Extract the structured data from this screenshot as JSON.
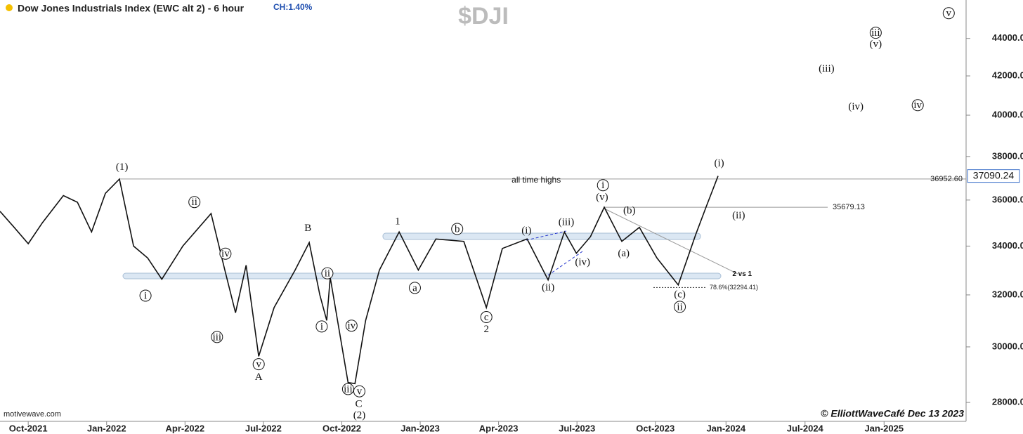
{
  "chart_data": {
    "type": "line",
    "title": "Dow Jones Industrials Index (EWC alt 2) - 6 hour",
    "change": "CH:1.40%",
    "symbol": "$DJI",
    "source": "motivewave.com",
    "credit": "© ElliottWaveCafé Dec 13 2023",
    "log_scale": true,
    "color": "#111111",
    "x": [
      2021.66,
      2021.705,
      2021.75,
      2021.795,
      2021.862,
      2021.907,
      2021.952,
      2021.996,
      2022.041,
      2022.086,
      2022.131,
      2022.176,
      2022.243,
      2022.333,
      2022.377,
      2022.411,
      2022.445,
      2022.485,
      2022.534,
      2022.601,
      2022.646,
      2022.68,
      2022.702,
      2022.713,
      2022.77,
      2022.792,
      2022.826,
      2022.87,
      2022.933,
      2022.994,
      2023.05,
      2023.139,
      2023.211,
      2023.262,
      2023.341,
      2023.408,
      2023.46,
      2023.498,
      2023.543,
      2023.587,
      2023.643,
      2023.699,
      2023.755,
      2023.823,
      2023.879,
      2023.912,
      2023.95
    ],
    "values": [
      35500,
      34800,
      34100,
      35000,
      36200,
      35900,
      34600,
      36300,
      36950,
      34000,
      33500,
      32630,
      34000,
      35400,
      33000,
      31300,
      33200,
      29650,
      31500,
      33000,
      34150,
      32000,
      31000,
      32700,
      28700,
      28660,
      31000,
      33000,
      34600,
      33000,
      34300,
      34200,
      31500,
      33900,
      34300,
      32600,
      34600,
      33700,
      34400,
      35680,
      34200,
      34800,
      33500,
      32400,
      34500,
      35700,
      37090
    ],
    "xlim": [
      2021.66,
      2025.7
    ],
    "xticks": [
      {
        "value": 2021.75,
        "label": "Oct-2021"
      },
      {
        "value": 2022.0,
        "label": "Jan-2022"
      },
      {
        "value": 2022.25,
        "label": "Apr-2022"
      },
      {
        "value": 2022.5,
        "label": "Jul-2022"
      },
      {
        "value": 2022.75,
        "label": "Oct-2022"
      },
      {
        "value": 2023.0,
        "label": "Jan-2023"
      },
      {
        "value": 2023.25,
        "label": "Apr-2023"
      },
      {
        "value": 2023.5,
        "label": "Jul-2023"
      },
      {
        "value": 2023.75,
        "label": "Oct-2023"
      },
      {
        "value": 2024.0,
        "label": "Jan-2024"
      },
      {
        "value": 2024.5,
        "label": "Jul-2024"
      },
      {
        "value": 2025.0,
        "label": "Jan-2025"
      }
    ],
    "ylim": [
      27350,
      46150
    ],
    "yticks": [
      {
        "value": 28000,
        "label": "28000.00"
      },
      {
        "value": 30000,
        "label": "30000.00"
      },
      {
        "value": 32000,
        "label": "32000.00"
      },
      {
        "value": 34000,
        "label": "34000.00"
      },
      {
        "value": 36000,
        "label": "36000.00"
      },
      {
        "value": 38000,
        "label": "38000.00"
      },
      {
        "value": 40000,
        "label": "40000.00"
      },
      {
        "value": 42000,
        "label": "42000.00"
      },
      {
        "value": 44000,
        "label": "44000.00"
      }
    ],
    "last_price": {
      "value": 37090.24,
      "label": "37090.24"
    },
    "levels": [
      {
        "value": 36952.6,
        "label": "36952.60"
      },
      {
        "value": 35679.13,
        "label": "35679.13"
      },
      {
        "value": 32294.41,
        "label": "78.6%(32294.41)"
      }
    ],
    "annotations": [
      {
        "text": "(1)",
        "x": 2022.049,
        "y": 37520,
        "circled": false
      },
      {
        "text": "i",
        "x": 2022.124,
        "y": 31970,
        "circled": true
      },
      {
        "text": "ii",
        "x": 2022.28,
        "y": 35910,
        "circled": true
      },
      {
        "text": "iii",
        "x": 2022.352,
        "y": 30370,
        "circled": true
      },
      {
        "text": "iv",
        "x": 2022.379,
        "y": 33680,
        "circled": true
      },
      {
        "text": "v",
        "x": 2022.485,
        "y": 29360,
        "circled": true
      },
      {
        "text": "A",
        "x": 2022.485,
        "y": 28910,
        "circled": false
      },
      {
        "text": "B",
        "x": 2022.642,
        "y": 34770,
        "circled": false
      },
      {
        "text": "i",
        "x": 2022.686,
        "y": 30770,
        "circled": true
      },
      {
        "text": "ii",
        "x": 2022.704,
        "y": 32870,
        "circled": true
      },
      {
        "text": "iii",
        "x": 2022.77,
        "y": 28470,
        "circled": true
      },
      {
        "text": "iv",
        "x": 2022.781,
        "y": 30800,
        "circled": true
      },
      {
        "text": "v",
        "x": 2022.806,
        "y": 28390,
        "circled": true
      },
      {
        "text": "C",
        "x": 2022.804,
        "y": 27950,
        "circled": false
      },
      {
        "text": "(2)",
        "x": 2022.806,
        "y": 27560,
        "circled": false
      },
      {
        "text": "1",
        "x": 2022.928,
        "y": 35070,
        "circled": false
      },
      {
        "text": "a",
        "x": 2022.983,
        "y": 32280,
        "circled": true
      },
      {
        "text": "b",
        "x": 2023.118,
        "y": 34730,
        "circled": true
      },
      {
        "text": "c",
        "x": 2023.211,
        "y": 31130,
        "circled": true
      },
      {
        "text": "2",
        "x": 2023.211,
        "y": 30670,
        "circled": false
      },
      {
        "text": "(i)",
        "x": 2023.339,
        "y": 34670,
        "circled": false
      },
      {
        "text": "(ii)",
        "x": 2023.408,
        "y": 32310,
        "circled": false
      },
      {
        "text": "(iii)",
        "x": 2023.466,
        "y": 35040,
        "circled": false
      },
      {
        "text": "(iv)",
        "x": 2023.518,
        "y": 33340,
        "circled": false
      },
      {
        "text": "i",
        "x": 2023.583,
        "y": 36670,
        "circled": true
      },
      {
        "text": "(v)",
        "x": 2023.58,
        "y": 36130,
        "circled": false
      },
      {
        "text": "(a)",
        "x": 2023.649,
        "y": 33700,
        "circled": false
      },
      {
        "text": "(b)",
        "x": 2023.667,
        "y": 35540,
        "circled": false
      },
      {
        "text": "(c)",
        "x": 2023.828,
        "y": 32030,
        "circled": false
      },
      {
        "text": "ii",
        "x": 2023.828,
        "y": 31530,
        "circled": true
      },
      {
        "text": "(i)",
        "x": 2023.957,
        "y": 37700,
        "circled": false
      },
      {
        "text": "(ii)",
        "x": 2024.08,
        "y": 35320,
        "circled": false
      },
      {
        "text": "(iii)",
        "x": 2024.636,
        "y": 42390,
        "circled": false
      },
      {
        "text": "(iv)",
        "x": 2024.822,
        "y": 40430,
        "circled": false
      },
      {
        "text": "iii",
        "x": 2024.947,
        "y": 44310,
        "circled": true
      },
      {
        "text": "(v)",
        "x": 2024.947,
        "y": 43700,
        "circled": false
      },
      {
        "text": "iv",
        "x": 2025.213,
        "y": 40500,
        "circled": true
      },
      {
        "text": "v",
        "x": 2025.409,
        "y": 45400,
        "circled": true
      }
    ],
    "notes": [
      {
        "text": "all time highs",
        "x": 2023.37,
        "y": 36890
      },
      {
        "text": "2 vs 1",
        "x": 2024.102,
        "y": 32840
      }
    ]
  }
}
